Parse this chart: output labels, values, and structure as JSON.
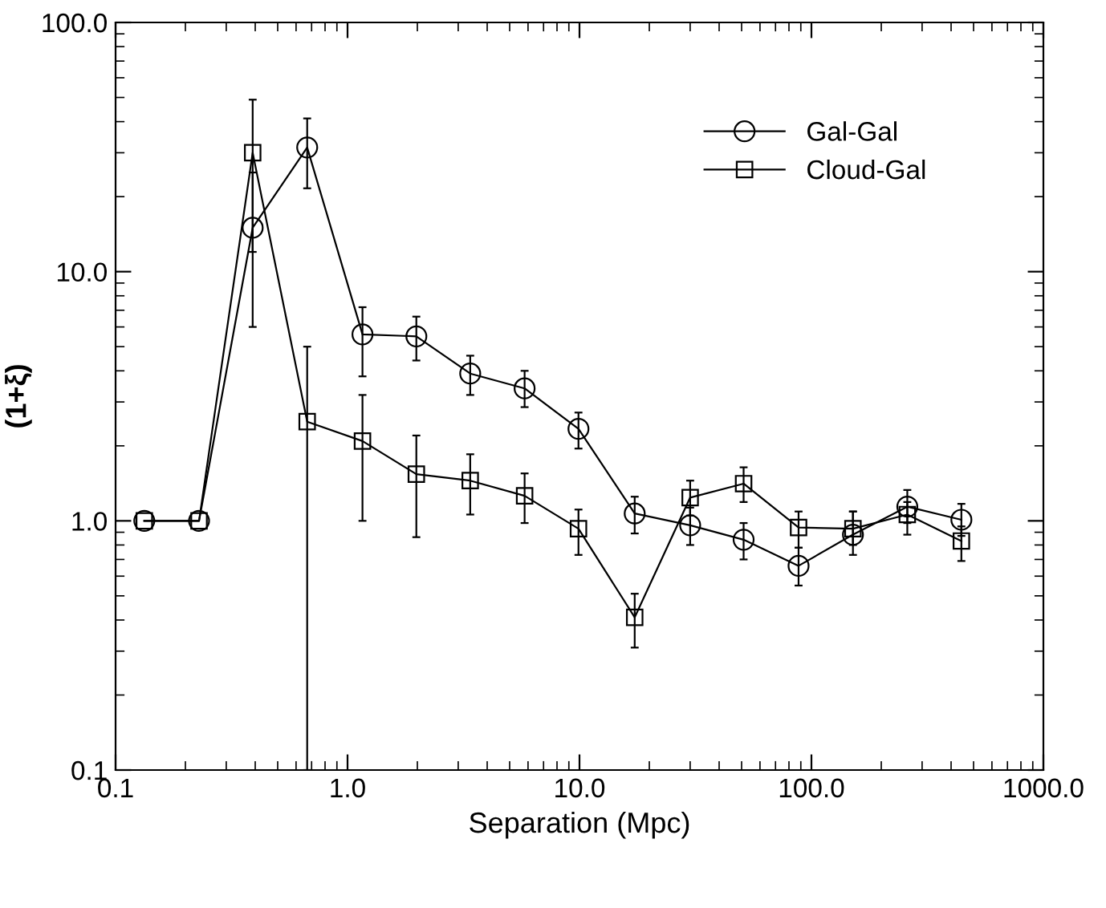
{
  "chart_data": {
    "type": "line",
    "xlabel": "Separation (Mpc)",
    "ylabel": "(1+ξ)",
    "log": "xy",
    "xlim": [
      0.1,
      1000
    ],
    "ylim": [
      0.1,
      100
    ],
    "xticks": [
      0.1,
      {
        "value": 1,
        "label": "1.0"
      },
      {
        "value": 10,
        "label": "10.0"
      },
      {
        "value": 100,
        "label": "100.0"
      },
      {
        "value": 1000,
        "label": "1000.0"
      }
    ],
    "yticks": [
      0.1,
      {
        "value": 1,
        "label": "1.0"
      },
      {
        "value": 10,
        "label": "10.0"
      },
      {
        "value": 100,
        "label": "100.0"
      }
    ],
    "grid": false,
    "legend": "top right",
    "series": [
      {
        "name": "Gal-Gal",
        "color": "#000000",
        "marker": "circle",
        "x": [
          0.133,
          0.229,
          0.39,
          0.67,
          1.16,
          1.98,
          3.38,
          5.8,
          9.9,
          17.3,
          30,
          51,
          88,
          151,
          259,
          443
        ],
        "values": [
          1.0,
          1.0,
          15.0,
          31.5,
          5.6,
          5.5,
          3.9,
          3.4,
          2.34,
          1.07,
          0.96,
          0.84,
          0.66,
          0.88,
          1.14,
          1.01
        ],
        "errors": [
          null,
          null,
          [
            6.0,
            25
          ],
          [
            21.6,
            41.2
          ],
          [
            3.8,
            7.2
          ],
          [
            4.4,
            6.6
          ],
          [
            3.2,
            4.6
          ],
          [
            2.86,
            4.0
          ],
          [
            1.95,
            2.72
          ],
          [
            0.89,
            1.25
          ],
          [
            0.8,
            1.13
          ],
          [
            0.7,
            0.98
          ],
          [
            0.55,
            0.78
          ],
          [
            0.73,
            1.09
          ],
          [
            0.98,
            1.33
          ],
          [
            0.87,
            1.17
          ]
        ]
      },
      {
        "name": "Cloud-Gal",
        "color": "#000000",
        "marker": "square",
        "x": [
          0.133,
          0.229,
          0.39,
          0.67,
          1.16,
          1.98,
          3.38,
          5.8,
          9.9,
          17.3,
          30,
          51,
          88,
          151,
          259,
          443
        ],
        "values": [
          1.0,
          1.0,
          30,
          2.5,
          2.09,
          1.54,
          1.45,
          1.26,
          0.93,
          0.41,
          1.24,
          1.41,
          0.94,
          0.93,
          1.06,
          0.83
        ],
        "errors": [
          null,
          null,
          [
            12,
            49
          ],
          [
            0.1,
            5.0
          ],
          [
            1.0,
            3.2
          ],
          [
            0.86,
            2.2
          ],
          [
            1.06,
            1.85
          ],
          [
            0.98,
            1.55
          ],
          [
            0.73,
            1.11
          ],
          [
            0.31,
            0.51
          ],
          [
            1.05,
            1.45
          ],
          [
            1.19,
            1.64
          ],
          [
            0.78,
            1.09
          ],
          [
            0.8,
            1.09
          ],
          [
            0.88,
            1.19
          ],
          [
            0.69,
            0.95
          ]
        ]
      }
    ]
  }
}
